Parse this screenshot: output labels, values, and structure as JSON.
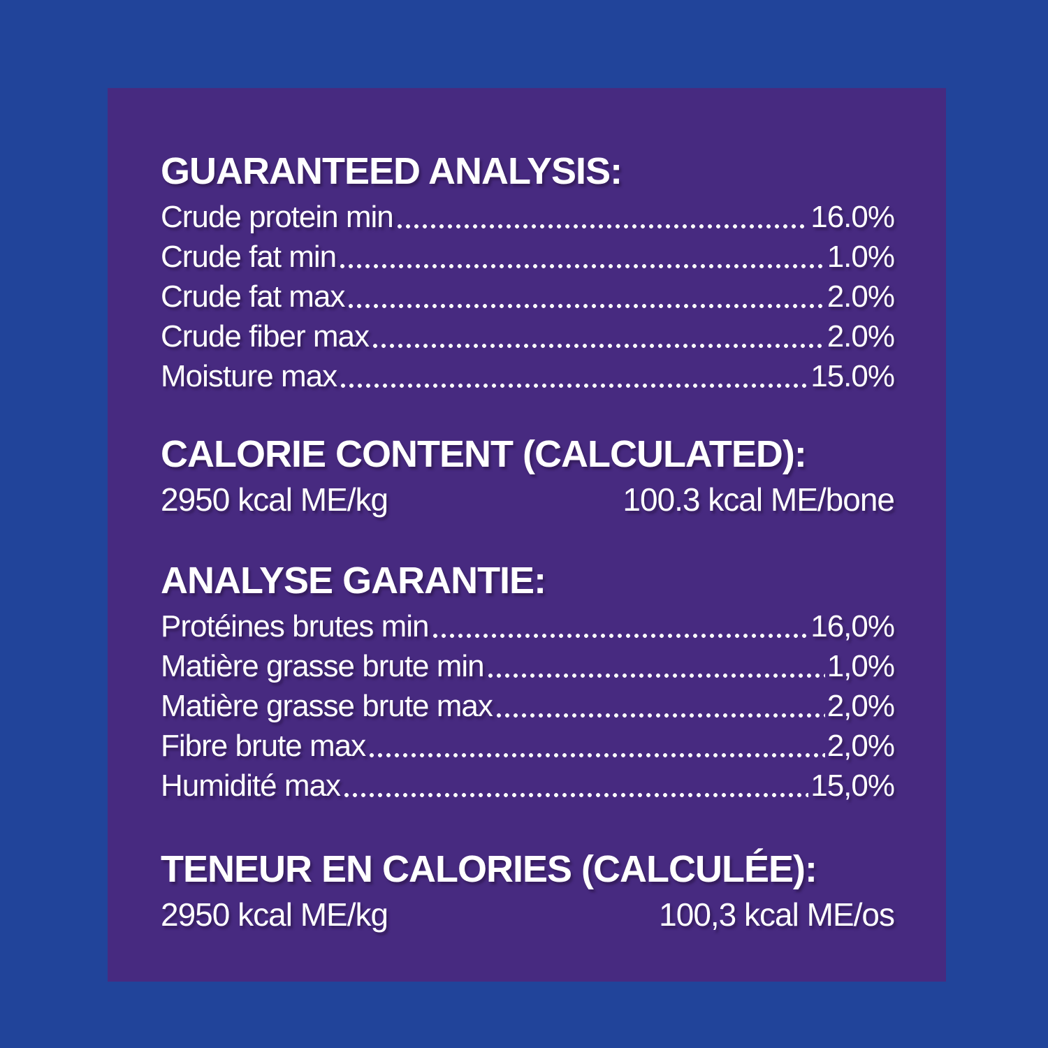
{
  "colors": {
    "background_blue": "#21449A",
    "panel_purple": "#472A80",
    "text_white": "#FFFFFF"
  },
  "sections": [
    {
      "heading": "GUARANTEED ANALYSIS:",
      "rows": [
        {
          "label": "Crude protein min",
          "value": "16.0%"
        },
        {
          "label": "Crude fat min",
          "value": "1.0%"
        },
        {
          "label": "Crude fat max",
          "value": "2.0%"
        },
        {
          "label": "Crude fiber max",
          "value": "2.0%"
        },
        {
          "label": "Moisture max",
          "value": "15.0%"
        }
      ]
    },
    {
      "heading": "CALORIE CONTENT (CALCULATED):",
      "left_value": "2950 kcal ME/kg",
      "right_value": "100.3 kcal ME/bone"
    },
    {
      "heading": "ANALYSE GARANTIE:",
      "rows": [
        {
          "label": "Protéines brutes min",
          "value": "16,0%"
        },
        {
          "label": "Matière grasse brute min",
          "value": "1,0%"
        },
        {
          "label": "Matière grasse brute max",
          "value": "2,0%"
        },
        {
          "label": "Fibre brute max",
          "value": "2,0%"
        },
        {
          "label": "Humidité max",
          "value": "15,0%"
        }
      ]
    },
    {
      "heading": "TENEUR EN CALORIES (CALCULÉE):",
      "left_value": "2950 kcal ME/kg",
      "right_value": "100,3 kcal ME/os"
    }
  ]
}
